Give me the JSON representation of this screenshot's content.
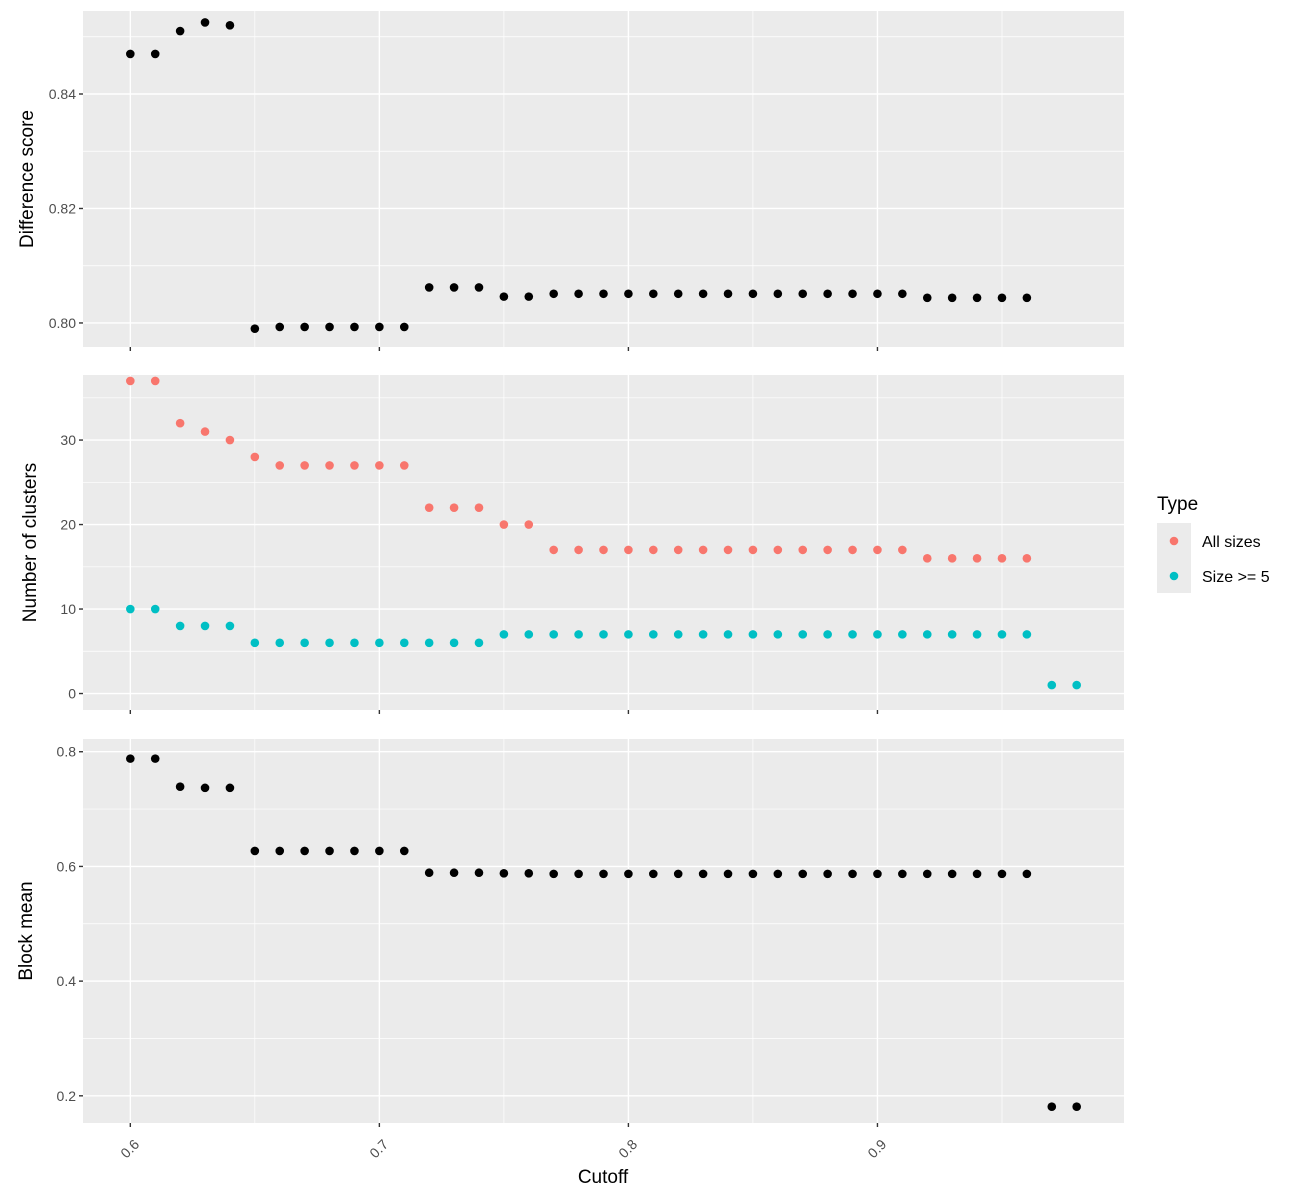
{
  "chart_data": {
    "type": "scatter",
    "layout": "three vertically stacked panels sharing the x axis",
    "grid": true,
    "xlabel": "Cutoff",
    "xlim": [
      0.581,
      0.999
    ],
    "xticks": [
      0.6,
      0.7,
      0.8,
      0.9
    ],
    "x_tick_labels": [
      "0.6",
      "0.7",
      "0.8",
      "0.9"
    ],
    "panels": [
      {
        "ylabel": "Difference score",
        "ylim": [
          0.7958,
          0.8545
        ],
        "yticks": [
          0.8,
          0.82,
          0.84
        ],
        "y_tick_labels": [
          "0.80",
          "0.82",
          "0.84"
        ],
        "series": [
          {
            "color": "#000000",
            "x": [
              0.6,
              0.61,
              0.62,
              0.63,
              0.64,
              0.65,
              0.66,
              0.67,
              0.68,
              0.69,
              0.7,
              0.71,
              0.72,
              0.73,
              0.74,
              0.75,
              0.76,
              0.77,
              0.78,
              0.79,
              0.8,
              0.81,
              0.82,
              0.83,
              0.84,
              0.85,
              0.86,
              0.87,
              0.88,
              0.89,
              0.9,
              0.91,
              0.92,
              0.93,
              0.94,
              0.95,
              0.96
            ],
            "y": [
              0.847,
              0.847,
              0.851,
              0.8525,
              0.852,
              0.799,
              0.7993,
              0.7993,
              0.7993,
              0.7993,
              0.7993,
              0.7993,
              0.8062,
              0.8062,
              0.8062,
              0.8046,
              0.8046,
              0.8051,
              0.8051,
              0.8051,
              0.8051,
              0.8051,
              0.8051,
              0.8051,
              0.8051,
              0.8051,
              0.8051,
              0.8051,
              0.8051,
              0.8051,
              0.8051,
              0.8051,
              0.8044,
              0.8044,
              0.8044,
              0.8044,
              0.8044
            ]
          }
        ]
      },
      {
        "ylabel": "Number of clusters",
        "ylim": [
          -1.95,
          37.7
        ],
        "yticks": [
          0,
          10,
          20,
          30
        ],
        "y_tick_labels": [
          "0",
          "10",
          "20",
          "30"
        ],
        "series": [
          {
            "name": "All sizes",
            "color": "#f8766d",
            "x": [
              0.6,
              0.61,
              0.62,
              0.63,
              0.64,
              0.65,
              0.66,
              0.67,
              0.68,
              0.69,
              0.7,
              0.71,
              0.72,
              0.73,
              0.74,
              0.75,
              0.76,
              0.77,
              0.78,
              0.79,
              0.8,
              0.81,
              0.82,
              0.83,
              0.84,
              0.85,
              0.86,
              0.87,
              0.88,
              0.89,
              0.9,
              0.91,
              0.92,
              0.93,
              0.94,
              0.95,
              0.96
            ],
            "y": [
              37,
              37,
              32,
              31,
              30,
              28,
              27,
              27,
              27,
              27,
              27,
              27,
              22,
              22,
              22,
              20,
              20,
              17,
              17,
              17,
              17,
              17,
              17,
              17,
              17,
              17,
              17,
              17,
              17,
              17,
              17,
              17,
              16,
              16,
              16,
              16,
              16
            ]
          },
          {
            "name": "Size >= 5",
            "color": "#00bfc4",
            "x": [
              0.6,
              0.61,
              0.62,
              0.63,
              0.64,
              0.65,
              0.66,
              0.67,
              0.68,
              0.69,
              0.7,
              0.71,
              0.72,
              0.73,
              0.74,
              0.75,
              0.76,
              0.77,
              0.78,
              0.79,
              0.8,
              0.81,
              0.82,
              0.83,
              0.84,
              0.85,
              0.86,
              0.87,
              0.88,
              0.89,
              0.9,
              0.91,
              0.92,
              0.93,
              0.94,
              0.95,
              0.96,
              0.97,
              0.98
            ],
            "y": [
              10,
              10,
              8,
              8,
              8,
              6,
              6,
              6,
              6,
              6,
              6,
              6,
              6,
              6,
              6,
              7,
              7,
              7,
              7,
              7,
              7,
              7,
              7,
              7,
              7,
              7,
              7,
              7,
              7,
              7,
              7,
              7,
              7,
              7,
              7,
              7,
              7,
              1,
              1
            ]
          }
        ]
      },
      {
        "ylabel": "Block mean",
        "ylim": [
          0.1526,
          0.8222
        ],
        "yticks": [
          0.2,
          0.4,
          0.6,
          0.8
        ],
        "y_tick_labels": [
          "0.2",
          "0.4",
          "0.6",
          "0.8"
        ],
        "series": [
          {
            "color": "#000000",
            "x": [
              0.6,
              0.61,
              0.62,
              0.63,
              0.64,
              0.65,
              0.66,
              0.67,
              0.68,
              0.69,
              0.7,
              0.71,
              0.72,
              0.73,
              0.74,
              0.75,
              0.76,
              0.77,
              0.78,
              0.79,
              0.8,
              0.81,
              0.82,
              0.83,
              0.84,
              0.85,
              0.86,
              0.87,
              0.88,
              0.89,
              0.9,
              0.91,
              0.92,
              0.93,
              0.94,
              0.95,
              0.96,
              0.97,
              0.98
            ],
            "y": [
              0.788,
              0.788,
              0.739,
              0.737,
              0.737,
              0.627,
              0.627,
              0.627,
              0.627,
              0.627,
              0.627,
              0.627,
              0.589,
              0.589,
              0.589,
              0.588,
              0.588,
              0.587,
              0.587,
              0.587,
              0.587,
              0.587,
              0.587,
              0.587,
              0.587,
              0.587,
              0.587,
              0.587,
              0.587,
              0.587,
              0.587,
              0.587,
              0.587,
              0.587,
              0.587,
              0.587,
              0.587,
              0.181,
              0.181
            ]
          }
        ]
      }
    ],
    "legend": {
      "title": "Type",
      "placement": "right",
      "items": [
        {
          "label": "All sizes",
          "color": "#f8766d"
        },
        {
          "label": "Size >= 5",
          "color": "#00bfc4"
        }
      ]
    }
  }
}
